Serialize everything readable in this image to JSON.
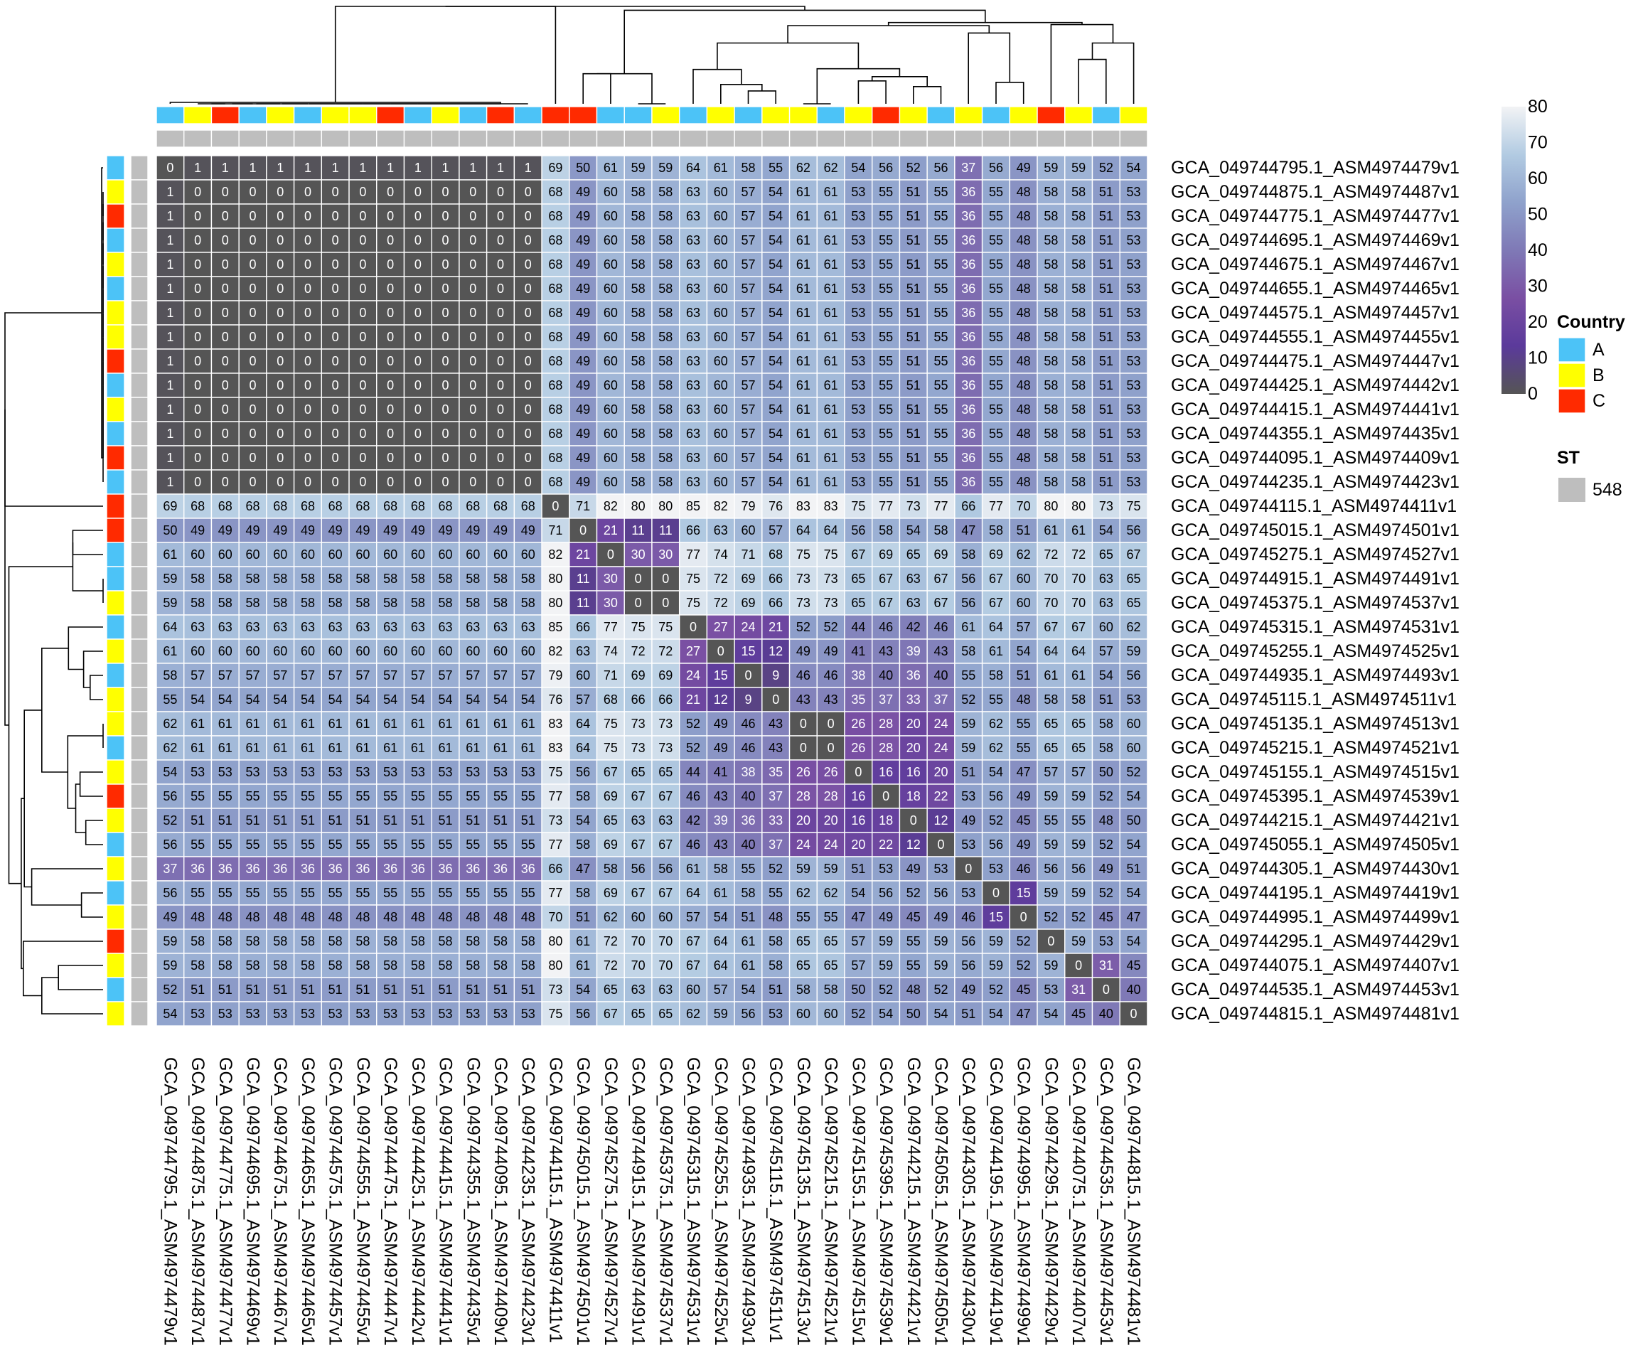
{
  "chart_data": {
    "type": "heatmap",
    "value_legend": {
      "ticks": [
        80,
        70,
        60,
        50,
        40,
        30,
        20,
        10,
        0
      ],
      "range": [
        0,
        80
      ]
    },
    "colors": {
      "country": {
        "A": "#4cc3f7",
        "B": "#ffff00",
        "C": "#ff2a00"
      },
      "st": "#bebebe",
      "scale_stops": [
        "#555555",
        "#5b3a9b",
        "#7a4fa3",
        "#7f79b6",
        "#8fa2cc",
        "#b2cbe2",
        "#f2f3f5"
      ]
    },
    "legends": {
      "country": {
        "title": "Country",
        "entries": [
          {
            "label": "A"
          },
          {
            "label": "B"
          },
          {
            "label": "C"
          }
        ]
      },
      "st": {
        "title": "ST",
        "entries": [
          {
            "label": "548"
          }
        ]
      }
    },
    "labels": [
      "GCA_049744795.1_ASM4974479v1",
      "GCA_049744875.1_ASM4974487v1",
      "GCA_049744775.1_ASM4974477v1",
      "GCA_049744695.1_ASM4974469v1",
      "GCA_049744675.1_ASM4974467v1",
      "GCA_049744655.1_ASM4974465v1",
      "GCA_049744575.1_ASM4974457v1",
      "GCA_049744555.1_ASM4974455v1",
      "GCA_049744475.1_ASM4974447v1",
      "GCA_049744425.1_ASM4974442v1",
      "GCA_049744415.1_ASM4974441v1",
      "GCA_049744355.1_ASM4974435v1",
      "GCA_049744095.1_ASM4974409v1",
      "GCA_049744235.1_ASM4974423v1",
      "GCA_049744115.1_ASM4974411v1",
      "GCA_049745015.1_ASM4974501v1",
      "GCA_049745275.1_ASM4974527v1",
      "GCA_049744915.1_ASM4974491v1",
      "GCA_049745375.1_ASM4974537v1",
      "GCA_049745315.1_ASM4974531v1",
      "GCA_049745255.1_ASM4974525v1",
      "GCA_049744935.1_ASM4974493v1",
      "GCA_049745115.1_ASM4974511v1",
      "GCA_049745135.1_ASM4974513v1",
      "GCA_049745215.1_ASM4974521v1",
      "GCA_049745155.1_ASM4974515v1",
      "GCA_049745395.1_ASM4974539v1",
      "GCA_049744215.1_ASM4974421v1",
      "GCA_049745055.1_ASM4974505v1",
      "GCA_049744305.1_ASM4974430v1",
      "GCA_049744195.1_ASM4974419v1",
      "GCA_049744995.1_ASM4974499v1",
      "GCA_049744295.1_ASM4974429v1",
      "GCA_049744075.1_ASM4974407v1",
      "GCA_049744535.1_ASM4974453v1",
      "GCA_049744815.1_ASM4974481v1"
    ],
    "country": [
      "A",
      "B",
      "C",
      "A",
      "B",
      "A",
      "B",
      "B",
      "C",
      "A",
      "B",
      "A",
      "C",
      "A",
      "C",
      "C",
      "A",
      "A",
      "B",
      "A",
      "B",
      "A",
      "B",
      "B",
      "A",
      "B",
      "C",
      "B",
      "A",
      "B",
      "A",
      "B",
      "C",
      "B",
      "A",
      "B"
    ],
    "st": [
      "548",
      "548",
      "548",
      "548",
      "548",
      "548",
      "548",
      "548",
      "548",
      "548",
      "548",
      "548",
      "548",
      "548",
      "548",
      "548",
      "548",
      "548",
      "548",
      "548",
      "548",
      "548",
      "548",
      "548",
      "548",
      "548",
      "548",
      "548",
      "548",
      "548",
      "548",
      "548",
      "548",
      "548",
      "548",
      "548"
    ],
    "matrix": [
      [
        0,
        1,
        1,
        1,
        1,
        1,
        1,
        1,
        1,
        1,
        1,
        1,
        1,
        1,
        69,
        50,
        61,
        59,
        59,
        64,
        61,
        58,
        55,
        62,
        62,
        54,
        56,
        52,
        56,
        37,
        56,
        49,
        59,
        59,
        52,
        54
      ],
      [
        1,
        0,
        0,
        0,
        0,
        0,
        0,
        0,
        0,
        0,
        0,
        0,
        0,
        0,
        68,
        49,
        60,
        58,
        58,
        63,
        60,
        57,
        54,
        61,
        61,
        53,
        55,
        51,
        55,
        36,
        55,
        48,
        58,
        58,
        51,
        53
      ],
      [
        1,
        0,
        0,
        0,
        0,
        0,
        0,
        0,
        0,
        0,
        0,
        0,
        0,
        0,
        68,
        49,
        60,
        58,
        58,
        63,
        60,
        57,
        54,
        61,
        61,
        53,
        55,
        51,
        55,
        36,
        55,
        48,
        58,
        58,
        51,
        53
      ],
      [
        1,
        0,
        0,
        0,
        0,
        0,
        0,
        0,
        0,
        0,
        0,
        0,
        0,
        0,
        68,
        49,
        60,
        58,
        58,
        63,
        60,
        57,
        54,
        61,
        61,
        53,
        55,
        51,
        55,
        36,
        55,
        48,
        58,
        58,
        51,
        53
      ],
      [
        1,
        0,
        0,
        0,
        0,
        0,
        0,
        0,
        0,
        0,
        0,
        0,
        0,
        0,
        68,
        49,
        60,
        58,
        58,
        63,
        60,
        57,
        54,
        61,
        61,
        53,
        55,
        51,
        55,
        36,
        55,
        48,
        58,
        58,
        51,
        53
      ],
      [
        1,
        0,
        0,
        0,
        0,
        0,
        0,
        0,
        0,
        0,
        0,
        0,
        0,
        0,
        68,
        49,
        60,
        58,
        58,
        63,
        60,
        57,
        54,
        61,
        61,
        53,
        55,
        51,
        55,
        36,
        55,
        48,
        58,
        58,
        51,
        53
      ],
      [
        1,
        0,
        0,
        0,
        0,
        0,
        0,
        0,
        0,
        0,
        0,
        0,
        0,
        0,
        68,
        49,
        60,
        58,
        58,
        63,
        60,
        57,
        54,
        61,
        61,
        53,
        55,
        51,
        55,
        36,
        55,
        48,
        58,
        58,
        51,
        53
      ],
      [
        1,
        0,
        0,
        0,
        0,
        0,
        0,
        0,
        0,
        0,
        0,
        0,
        0,
        0,
        68,
        49,
        60,
        58,
        58,
        63,
        60,
        57,
        54,
        61,
        61,
        53,
        55,
        51,
        55,
        36,
        55,
        48,
        58,
        58,
        51,
        53
      ],
      [
        1,
        0,
        0,
        0,
        0,
        0,
        0,
        0,
        0,
        0,
        0,
        0,
        0,
        0,
        68,
        49,
        60,
        58,
        58,
        63,
        60,
        57,
        54,
        61,
        61,
        53,
        55,
        51,
        55,
        36,
        55,
        48,
        58,
        58,
        51,
        53
      ],
      [
        1,
        0,
        0,
        0,
        0,
        0,
        0,
        0,
        0,
        0,
        0,
        0,
        0,
        0,
        68,
        49,
        60,
        58,
        58,
        63,
        60,
        57,
        54,
        61,
        61,
        53,
        55,
        51,
        55,
        36,
        55,
        48,
        58,
        58,
        51,
        53
      ],
      [
        1,
        0,
        0,
        0,
        0,
        0,
        0,
        0,
        0,
        0,
        0,
        0,
        0,
        0,
        68,
        49,
        60,
        58,
        58,
        63,
        60,
        57,
        54,
        61,
        61,
        53,
        55,
        51,
        55,
        36,
        55,
        48,
        58,
        58,
        51,
        53
      ],
      [
        1,
        0,
        0,
        0,
        0,
        0,
        0,
        0,
        0,
        0,
        0,
        0,
        0,
        0,
        68,
        49,
        60,
        58,
        58,
        63,
        60,
        57,
        54,
        61,
        61,
        53,
        55,
        51,
        55,
        36,
        55,
        48,
        58,
        58,
        51,
        53
      ],
      [
        1,
        0,
        0,
        0,
        0,
        0,
        0,
        0,
        0,
        0,
        0,
        0,
        0,
        0,
        68,
        49,
        60,
        58,
        58,
        63,
        60,
        57,
        54,
        61,
        61,
        53,
        55,
        51,
        55,
        36,
        55,
        48,
        58,
        58,
        51,
        53
      ],
      [
        1,
        0,
        0,
        0,
        0,
        0,
        0,
        0,
        0,
        0,
        0,
        0,
        0,
        0,
        68,
        49,
        60,
        58,
        58,
        63,
        60,
        57,
        54,
        61,
        61,
        53,
        55,
        51,
        55,
        36,
        55,
        48,
        58,
        58,
        51,
        53
      ],
      [
        69,
        68,
        68,
        68,
        68,
        68,
        68,
        68,
        68,
        68,
        68,
        68,
        68,
        68,
        0,
        71,
        82,
        80,
        80,
        85,
        82,
        79,
        76,
        83,
        83,
        75,
        77,
        73,
        77,
        66,
        77,
        70,
        80,
        80,
        73,
        75
      ],
      [
        50,
        49,
        49,
        49,
        49,
        49,
        49,
        49,
        49,
        49,
        49,
        49,
        49,
        49,
        71,
        0,
        21,
        11,
        11,
        66,
        63,
        60,
        57,
        64,
        64,
        56,
        58,
        54,
        58,
        47,
        58,
        51,
        61,
        61,
        54,
        56
      ],
      [
        61,
        60,
        60,
        60,
        60,
        60,
        60,
        60,
        60,
        60,
        60,
        60,
        60,
        60,
        82,
        21,
        0,
        30,
        30,
        77,
        74,
        71,
        68,
        75,
        75,
        67,
        69,
        65,
        69,
        58,
        69,
        62,
        72,
        72,
        65,
        67
      ],
      [
        59,
        58,
        58,
        58,
        58,
        58,
        58,
        58,
        58,
        58,
        58,
        58,
        58,
        58,
        80,
        11,
        30,
        0,
        0,
        75,
        72,
        69,
        66,
        73,
        73,
        65,
        67,
        63,
        67,
        56,
        67,
        60,
        70,
        70,
        63,
        65
      ],
      [
        59,
        58,
        58,
        58,
        58,
        58,
        58,
        58,
        58,
        58,
        58,
        58,
        58,
        58,
        80,
        11,
        30,
        0,
        0,
        75,
        72,
        69,
        66,
        73,
        73,
        65,
        67,
        63,
        67,
        56,
        67,
        60,
        70,
        70,
        63,
        65
      ],
      [
        64,
        63,
        63,
        63,
        63,
        63,
        63,
        63,
        63,
        63,
        63,
        63,
        63,
        63,
        85,
        66,
        77,
        75,
        75,
        0,
        27,
        24,
        21,
        52,
        52,
        44,
        46,
        42,
        46,
        61,
        64,
        57,
        67,
        67,
        60,
        62
      ],
      [
        61,
        60,
        60,
        60,
        60,
        60,
        60,
        60,
        60,
        60,
        60,
        60,
        60,
        60,
        82,
        63,
        74,
        72,
        72,
        27,
        0,
        15,
        12,
        49,
        49,
        41,
        43,
        39,
        43,
        58,
        61,
        54,
        64,
        64,
        57,
        59
      ],
      [
        58,
        57,
        57,
        57,
        57,
        57,
        57,
        57,
        57,
        57,
        57,
        57,
        57,
        57,
        79,
        60,
        71,
        69,
        69,
        24,
        15,
        0,
        9,
        46,
        46,
        38,
        40,
        36,
        40,
        55,
        58,
        51,
        61,
        61,
        54,
        56
      ],
      [
        55,
        54,
        54,
        54,
        54,
        54,
        54,
        54,
        54,
        54,
        54,
        54,
        54,
        54,
        76,
        57,
        68,
        66,
        66,
        21,
        12,
        9,
        0,
        43,
        43,
        35,
        37,
        33,
        37,
        52,
        55,
        48,
        58,
        58,
        51,
        53
      ],
      [
        62,
        61,
        61,
        61,
        61,
        61,
        61,
        61,
        61,
        61,
        61,
        61,
        61,
        61,
        83,
        64,
        75,
        73,
        73,
        52,
        49,
        46,
        43,
        0,
        0,
        26,
        28,
        20,
        24,
        59,
        62,
        55,
        65,
        65,
        58,
        60
      ],
      [
        62,
        61,
        61,
        61,
        61,
        61,
        61,
        61,
        61,
        61,
        61,
        61,
        61,
        61,
        83,
        64,
        75,
        73,
        73,
        52,
        49,
        46,
        43,
        0,
        0,
        26,
        28,
        20,
        24,
        59,
        62,
        55,
        65,
        65,
        58,
        60
      ],
      [
        54,
        53,
        53,
        53,
        53,
        53,
        53,
        53,
        53,
        53,
        53,
        53,
        53,
        53,
        75,
        56,
        67,
        65,
        65,
        44,
        41,
        38,
        35,
        26,
        26,
        0,
        16,
        16,
        20,
        51,
        54,
        47,
        57,
        57,
        50,
        52
      ],
      [
        56,
        55,
        55,
        55,
        55,
        55,
        55,
        55,
        55,
        55,
        55,
        55,
        55,
        55,
        77,
        58,
        69,
        67,
        67,
        46,
        43,
        40,
        37,
        28,
        28,
        16,
        0,
        18,
        22,
        53,
        56,
        49,
        59,
        59,
        52,
        54
      ],
      [
        52,
        51,
        51,
        51,
        51,
        51,
        51,
        51,
        51,
        51,
        51,
        51,
        51,
        51,
        73,
        54,
        65,
        63,
        63,
        42,
        39,
        36,
        33,
        20,
        20,
        16,
        18,
        0,
        12,
        49,
        52,
        45,
        55,
        55,
        48,
        50
      ],
      [
        56,
        55,
        55,
        55,
        55,
        55,
        55,
        55,
        55,
        55,
        55,
        55,
        55,
        55,
        77,
        58,
        69,
        67,
        67,
        46,
        43,
        40,
        37,
        24,
        24,
        20,
        22,
        12,
        0,
        53,
        56,
        49,
        59,
        59,
        52,
        54
      ],
      [
        37,
        36,
        36,
        36,
        36,
        36,
        36,
        36,
        36,
        36,
        36,
        36,
        36,
        36,
        66,
        47,
        58,
        56,
        56,
        61,
        58,
        55,
        52,
        59,
        59,
        51,
        53,
        49,
        53,
        0,
        53,
        46,
        56,
        56,
        49,
        51
      ],
      [
        56,
        55,
        55,
        55,
        55,
        55,
        55,
        55,
        55,
        55,
        55,
        55,
        55,
        55,
        77,
        58,
        69,
        67,
        67,
        64,
        61,
        58,
        55,
        62,
        62,
        54,
        56,
        52,
        56,
        53,
        0,
        15,
        59,
        59,
        52,
        54
      ],
      [
        49,
        48,
        48,
        48,
        48,
        48,
        48,
        48,
        48,
        48,
        48,
        48,
        48,
        48,
        70,
        51,
        62,
        60,
        60,
        57,
        54,
        51,
        48,
        55,
        55,
        47,
        49,
        45,
        49,
        46,
        15,
        0,
        52,
        52,
        45,
        47
      ],
      [
        59,
        58,
        58,
        58,
        58,
        58,
        58,
        58,
        58,
        58,
        58,
        58,
        58,
        58,
        80,
        61,
        72,
        70,
        70,
        67,
        64,
        61,
        58,
        65,
        65,
        57,
        59,
        55,
        59,
        56,
        59,
        52,
        0,
        59,
        53,
        54
      ],
      [
        59,
        58,
        58,
        58,
        58,
        58,
        58,
        58,
        58,
        58,
        58,
        58,
        58,
        58,
        80,
        61,
        72,
        70,
        70,
        67,
        64,
        61,
        58,
        65,
        65,
        57,
        59,
        55,
        59,
        56,
        59,
        52,
        59,
        0,
        31,
        45
      ],
      [
        52,
        51,
        51,
        51,
        51,
        51,
        51,
        51,
        51,
        51,
        51,
        51,
        51,
        51,
        73,
        54,
        65,
        63,
        63,
        60,
        57,
        54,
        51,
        58,
        58,
        50,
        52,
        48,
        52,
        49,
        52,
        45,
        53,
        31,
        0,
        40
      ],
      [
        54,
        53,
        53,
        53,
        53,
        53,
        53,
        53,
        53,
        53,
        53,
        53,
        53,
        53,
        75,
        56,
        67,
        65,
        65,
        62,
        59,
        56,
        53,
        60,
        60,
        52,
        54,
        50,
        54,
        51,
        54,
        47,
        54,
        45,
        40,
        0
      ]
    ]
  }
}
